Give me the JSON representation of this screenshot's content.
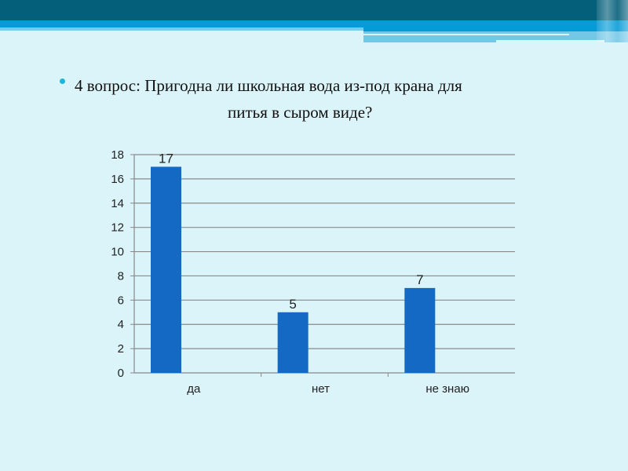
{
  "slide": {
    "title_line1": "4 вопрос: Пригодна ли школьная вода  из-под крана для",
    "title_line2": "питья в сыром виде?"
  },
  "colors": {
    "bar": "#1469c4",
    "header_dark": "#045f7a",
    "header_blue": "#049cd7",
    "background": "#dbf4f9",
    "bullet": "#1db5d8"
  },
  "chart_data": {
    "type": "bar",
    "categories": [
      "да",
      "нет",
      "не знаю"
    ],
    "values": [
      17,
      5,
      7
    ],
    "data_labels": [
      "17",
      "5",
      "7"
    ],
    "ylim": [
      0,
      18
    ],
    "yticks": [
      "0",
      "2",
      "4",
      "6",
      "8",
      "10",
      "12",
      "14",
      "16",
      "18"
    ],
    "grid": true,
    "legend": "none"
  }
}
